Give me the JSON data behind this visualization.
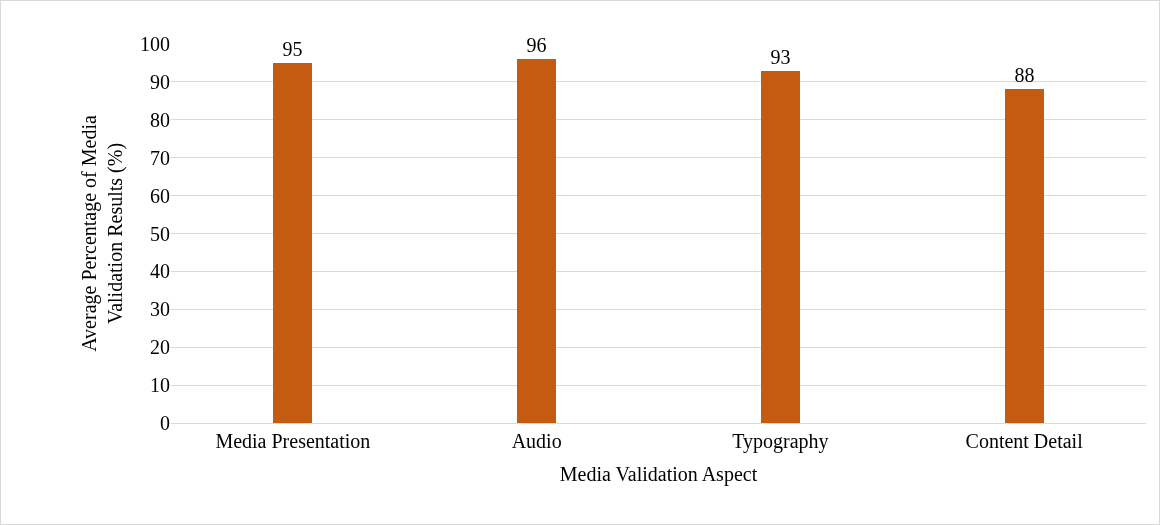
{
  "chart_data": {
    "type": "bar",
    "xlabel": "Media Validation Aspect",
    "ylabel": "Average Percentage of Media Validation Results (%)",
    "categories": [
      "Media Presentation",
      "Audio",
      "Typography",
      "Content Detail"
    ],
    "values": [
      95,
      96,
      93,
      88
    ],
    "color": "#c55a11",
    "ylim": [
      0,
      100
    ],
    "yticks": [
      0,
      10,
      20,
      30,
      40,
      50,
      60,
      70,
      80,
      90,
      100
    ],
    "grid": "y",
    "data_labels": true
  }
}
